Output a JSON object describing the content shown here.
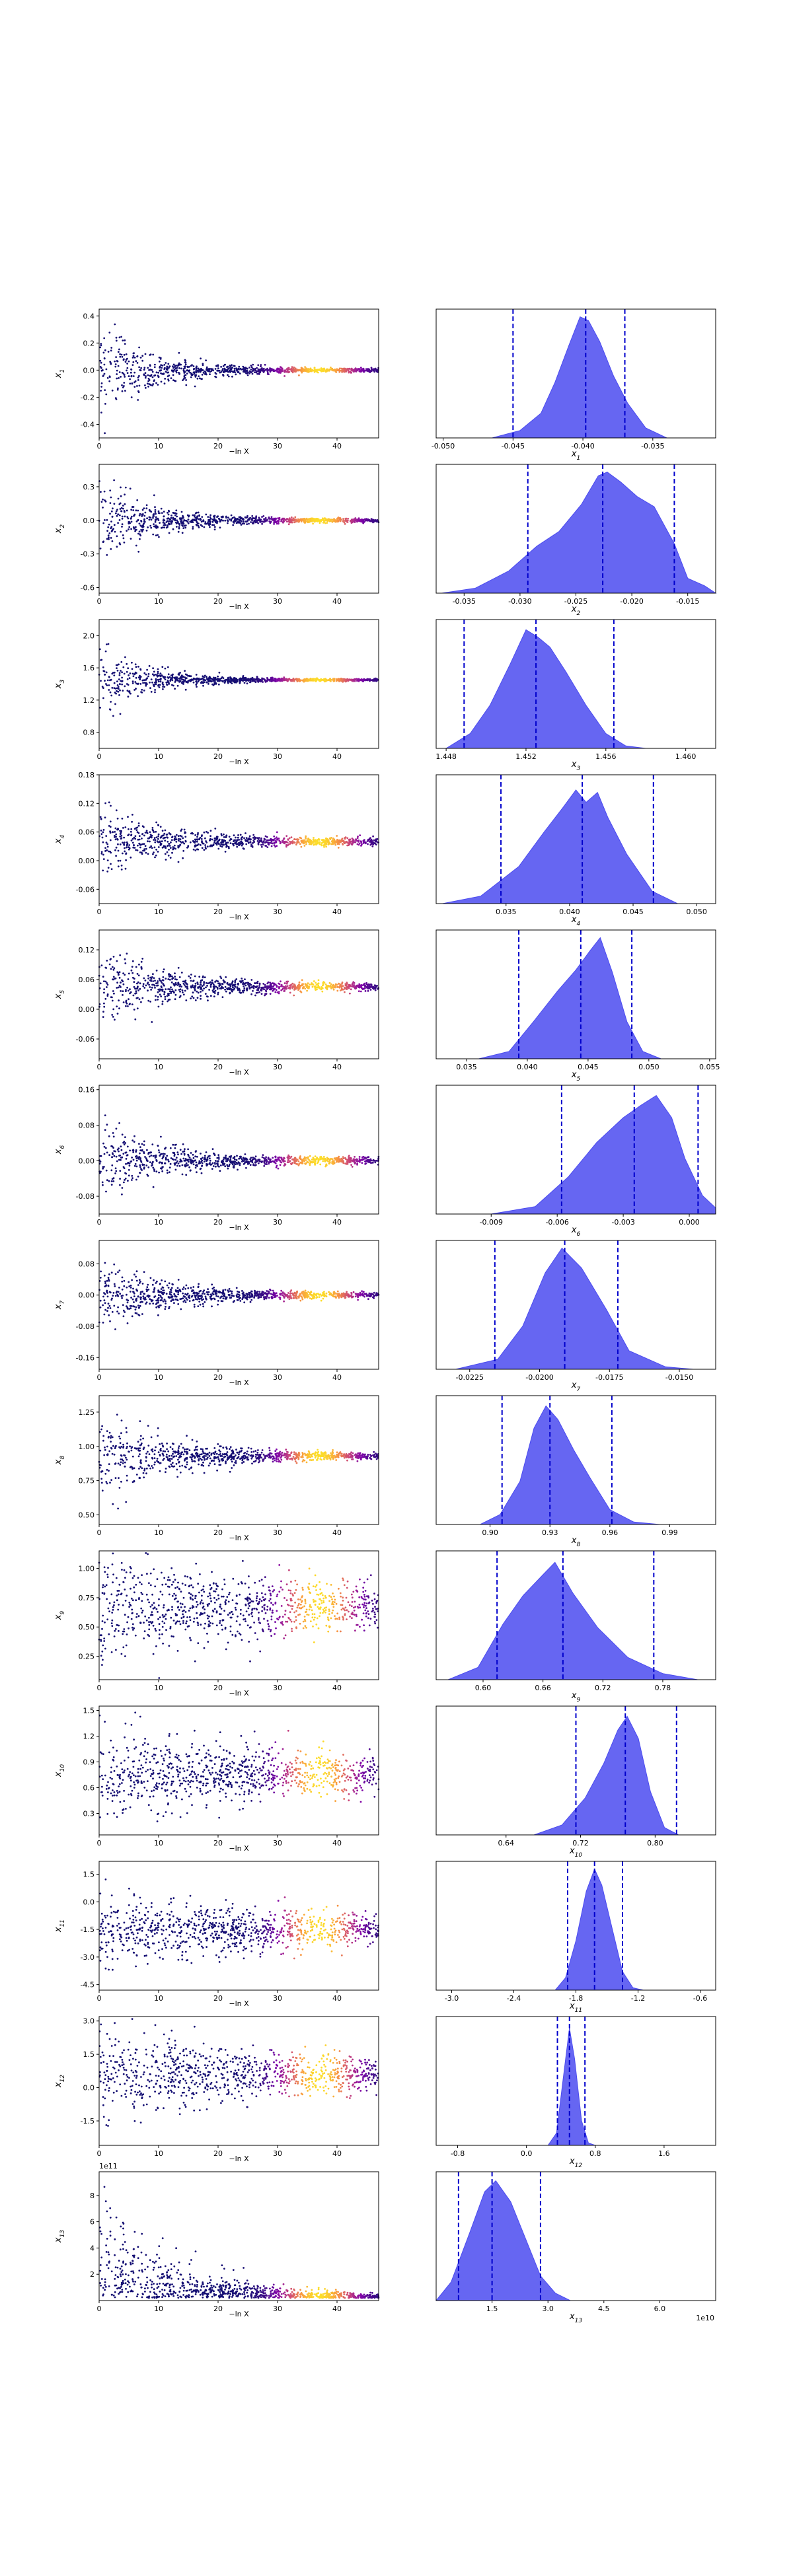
{
  "chart_data": [
    {
      "type": "scatter",
      "param": "x1",
      "ylabel": "x_1",
      "yticks": [
        "-0.4",
        "-0.2",
        "0.0",
        "0.2",
        "0.4"
      ],
      "yrange": [
        -0.5,
        0.45
      ],
      "trace": {
        "center": 0,
        "early_spread": 0.42,
        "late_spread": 0.015,
        "burn_in": 8
      }
    },
    {
      "type": "area",
      "param": "x1",
      "xlabel": "x_1",
      "xticks": [
        "-0.050",
        "-0.045",
        "-0.040",
        "-0.035"
      ],
      "xrange": [
        -0.0505,
        -0.0305
      ],
      "density": [
        [
          -0.0465,
          0
        ],
        [
          -0.0445,
          0.06
        ],
        [
          -0.043,
          0.2
        ],
        [
          -0.042,
          0.45
        ],
        [
          -0.041,
          0.75
        ],
        [
          -0.0402,
          0.98
        ],
        [
          -0.0396,
          0.95
        ],
        [
          -0.0388,
          0.78
        ],
        [
          -0.0378,
          0.5
        ],
        [
          -0.0368,
          0.28
        ],
        [
          -0.0355,
          0.08
        ],
        [
          -0.034,
          0
        ]
      ],
      "quantiles": [
        -0.045,
        -0.0398,
        -0.037
      ]
    },
    {
      "type": "scatter",
      "param": "x2",
      "ylabel": "x_2",
      "yticks": [
        "-0.6",
        "-0.3",
        "0.0",
        "0.3"
      ],
      "yrange": [
        -0.65,
        0.5
      ],
      "trace": {
        "center": 0,
        "early_spread": 0.45,
        "late_spread": 0.02,
        "burn_in": 8
      }
    },
    {
      "type": "area",
      "param": "x2",
      "xlabel": "x_2",
      "xticks": [
        "-0.035",
        "-0.030",
        "-0.025",
        "-0.020",
        "-0.015"
      ],
      "xrange": [
        -0.0375,
        -0.0125
      ],
      "density": [
        [
          -0.037,
          0
        ],
        [
          -0.034,
          0.04
        ],
        [
          -0.031,
          0.18
        ],
        [
          -0.0285,
          0.38
        ],
        [
          -0.0265,
          0.5
        ],
        [
          -0.0245,
          0.72
        ],
        [
          -0.023,
          0.95
        ],
        [
          -0.0222,
          0.98
        ],
        [
          -0.021,
          0.9
        ],
        [
          -0.0195,
          0.78
        ],
        [
          -0.018,
          0.7
        ],
        [
          -0.0162,
          0.4
        ],
        [
          -0.015,
          0.12
        ],
        [
          -0.0135,
          0.06
        ],
        [
          -0.0125,
          0
        ]
      ],
      "quantiles": [
        -0.0293,
        -0.0226,
        -0.0162
      ]
    },
    {
      "type": "scatter",
      "param": "x3",
      "ylabel": "x_3",
      "yticks": [
        "0.8",
        "1.2",
        "1.6",
        "2.0"
      ],
      "yrange": [
        0.6,
        2.2
      ],
      "trace": {
        "center": 1.45,
        "early_spread": 0.5,
        "late_spread": 0.015,
        "burn_in": 8
      }
    },
    {
      "type": "area",
      "param": "x3",
      "xlabel": "x_3",
      "xticks": [
        "1.448",
        "1.452",
        "1.456",
        "1.460"
      ],
      "xrange": [
        1.4475,
        1.4615
      ],
      "density": [
        [
          1.448,
          0
        ],
        [
          1.4492,
          0.12
        ],
        [
          1.4502,
          0.35
        ],
        [
          1.4512,
          0.68
        ],
        [
          1.452,
          0.96
        ],
        [
          1.4526,
          0.9
        ],
        [
          1.4532,
          0.82
        ],
        [
          1.454,
          0.62
        ],
        [
          1.455,
          0.35
        ],
        [
          1.456,
          0.12
        ],
        [
          1.457,
          0.02
        ],
        [
          1.458,
          0
        ]
      ],
      "quantiles": [
        1.4489,
        1.4525,
        1.4564
      ]
    },
    {
      "type": "scatter",
      "param": "x4",
      "ylabel": "x_4",
      "yticks": [
        "-0.06",
        "0.00",
        "0.06",
        "0.12",
        "0.18"
      ],
      "yrange": [
        -0.09,
        0.18
      ],
      "trace": {
        "center": 0.04,
        "early_spread": 0.09,
        "late_spread": 0.008,
        "burn_in": 10
      }
    },
    {
      "type": "area",
      "param": "x4",
      "xlabel": "x_4",
      "xticks": [
        "0.035",
        "0.040",
        "0.045",
        "0.050"
      ],
      "xrange": [
        0.0295,
        0.0515
      ],
      "density": [
        [
          0.03,
          0
        ],
        [
          0.033,
          0.06
        ],
        [
          0.036,
          0.3
        ],
        [
          0.038,
          0.58
        ],
        [
          0.0395,
          0.78
        ],
        [
          0.0405,
          0.92
        ],
        [
          0.0413,
          0.82
        ],
        [
          0.0422,
          0.9
        ],
        [
          0.043,
          0.7
        ],
        [
          0.0445,
          0.4
        ],
        [
          0.0465,
          0.1
        ],
        [
          0.0485,
          0
        ]
      ],
      "quantiles": [
        0.0346,
        0.041,
        0.0466
      ]
    },
    {
      "type": "scatter",
      "param": "x5",
      "ylabel": "x_5",
      "yticks": [
        "-0.06",
        "0.00",
        "0.06",
        "0.12"
      ],
      "yrange": [
        -0.1,
        0.16
      ],
      "trace": {
        "center": 0.045,
        "early_spread": 0.1,
        "late_spread": 0.008,
        "burn_in": 10
      }
    },
    {
      "type": "area",
      "param": "x5",
      "xlabel": "x_5",
      "xticks": [
        "0.035",
        "0.040",
        "0.045",
        "0.050",
        "0.055"
      ],
      "xrange": [
        0.0325,
        0.0555
      ],
      "density": [
        [
          0.036,
          0
        ],
        [
          0.0385,
          0.06
        ],
        [
          0.0405,
          0.3
        ],
        [
          0.0425,
          0.55
        ],
        [
          0.044,
          0.72
        ],
        [
          0.0452,
          0.88
        ],
        [
          0.046,
          0.98
        ],
        [
          0.047,
          0.7
        ],
        [
          0.0482,
          0.3
        ],
        [
          0.0495,
          0.06
        ],
        [
          0.051,
          0
        ]
      ],
      "quantiles": [
        0.0393,
        0.0444,
        0.0486
      ]
    },
    {
      "type": "scatter",
      "param": "x6",
      "ylabel": "x_6",
      "yticks": [
        "-0.08",
        "0.00",
        "0.08",
        "0.16"
      ],
      "yrange": [
        -0.12,
        0.17
      ],
      "trace": {
        "center": 0,
        "early_spread": 0.1,
        "late_spread": 0.008,
        "burn_in": 10
      }
    },
    {
      "type": "area",
      "param": "x6",
      "xlabel": "x_6",
      "xticks": [
        "-0.009",
        "-0.006",
        "-0.003",
        "0.000"
      ],
      "xrange": [
        -0.0115,
        0.0012
      ],
      "density": [
        [
          -0.009,
          0
        ],
        [
          -0.007,
          0.06
        ],
        [
          -0.0055,
          0.3
        ],
        [
          -0.0042,
          0.58
        ],
        [
          -0.003,
          0.78
        ],
        [
          -0.0022,
          0.88
        ],
        [
          -0.0015,
          0.96
        ],
        [
          -0.0008,
          0.78
        ],
        [
          -0.0002,
          0.45
        ],
        [
          0.0006,
          0.15
        ],
        [
          0.0012,
          0.05
        ]
      ],
      "quantiles": [
        -0.0058,
        -0.0025,
        0.0004
      ]
    },
    {
      "type": "scatter",
      "param": "x7",
      "ylabel": "x_7",
      "yticks": [
        "-0.16",
        "-0.08",
        "0.00",
        "0.08"
      ],
      "yrange": [
        -0.19,
        0.14
      ],
      "trace": {
        "center": 0,
        "early_spread": 0.1,
        "late_spread": 0.008,
        "burn_in": 10
      }
    },
    {
      "type": "area",
      "param": "x7",
      "xlabel": "x_7",
      "xticks": [
        "-0.0225",
        "-0.0200",
        "-0.0175",
        "-0.0150"
      ],
      "xrange": [
        -0.0237,
        -0.0137
      ],
      "density": [
        [
          -0.023,
          0
        ],
        [
          -0.0215,
          0.08
        ],
        [
          -0.0206,
          0.35
        ],
        [
          -0.0198,
          0.78
        ],
        [
          -0.0192,
          0.98
        ],
        [
          -0.0185,
          0.82
        ],
        [
          -0.0176,
          0.48
        ],
        [
          -0.0168,
          0.15
        ],
        [
          -0.0155,
          0.02
        ],
        [
          -0.0145,
          0
        ]
      ],
      "quantiles": [
        -0.0216,
        -0.0191,
        -0.0172
      ]
    },
    {
      "type": "scatter",
      "param": "x8",
      "ylabel": "x_8",
      "yticks": [
        "0.50",
        "0.75",
        "1.00",
        "1.25"
      ],
      "yrange": [
        0.43,
        1.37
      ],
      "trace": {
        "center": 0.93,
        "early_spread": 0.35,
        "late_spread": 0.02,
        "burn_in": 12
      }
    },
    {
      "type": "area",
      "param": "x8",
      "xlabel": "x_8",
      "xticks": [
        "0.90",
        "0.93",
        "0.96",
        "0.99"
      ],
      "xrange": [
        0.873,
        1.013
      ],
      "density": [
        [
          0.895,
          0
        ],
        [
          0.905,
          0.08
        ],
        [
          0.915,
          0.35
        ],
        [
          0.922,
          0.78
        ],
        [
          0.928,
          0.96
        ],
        [
          0.934,
          0.85
        ],
        [
          0.942,
          0.6
        ],
        [
          0.95,
          0.38
        ],
        [
          0.96,
          0.12
        ],
        [
          0.972,
          0.02
        ],
        [
          0.985,
          0
        ]
      ],
      "quantiles": [
        0.906,
        0.93,
        0.961
      ]
    },
    {
      "type": "scatter",
      "param": "x9",
      "ylabel": "x_9",
      "yticks": [
        "0.25",
        "0.50",
        "0.75",
        "1.00"
      ],
      "yrange": [
        0.05,
        1.15
      ],
      "trace": {
        "center": 0.67,
        "early_spread": 0.5,
        "late_spread": 0.06,
        "burn_in": 45
      }
    },
    {
      "type": "area",
      "param": "x9",
      "xlabel": "x_9",
      "xticks": [
        "0.60",
        "0.66",
        "0.72",
        "0.78"
      ],
      "xrange": [
        0.553,
        0.833
      ],
      "density": [
        [
          0.565,
          0
        ],
        [
          0.595,
          0.1
        ],
        [
          0.62,
          0.45
        ],
        [
          0.64,
          0.68
        ],
        [
          0.66,
          0.85
        ],
        [
          0.672,
          0.95
        ],
        [
          0.69,
          0.7
        ],
        [
          0.715,
          0.42
        ],
        [
          0.745,
          0.18
        ],
        [
          0.78,
          0.05
        ],
        [
          0.815,
          0
        ]
      ],
      "quantiles": [
        0.614,
        0.68,
        0.771
      ]
    },
    {
      "type": "scatter",
      "param": "x10",
      "ylabel": "x_10",
      "yticks": [
        "0.3",
        "0.6",
        "0.9",
        "1.2",
        "1.5"
      ],
      "yrange": [
        0.05,
        1.55
      ],
      "trace": {
        "center": 0.75,
        "early_spread": 0.55,
        "late_spread": 0.06,
        "burn_in": 45
      }
    },
    {
      "type": "area",
      "param": "x10",
      "xlabel": "x_10",
      "xticks": [
        "0.64",
        "0.72",
        "0.80"
      ],
      "xrange": [
        0.565,
        0.865
      ],
      "density": [
        [
          0.67,
          0
        ],
        [
          0.7,
          0.08
        ],
        [
          0.725,
          0.3
        ],
        [
          0.745,
          0.58
        ],
        [
          0.76,
          0.85
        ],
        [
          0.77,
          0.96
        ],
        [
          0.782,
          0.78
        ],
        [
          0.795,
          0.35
        ],
        [
          0.81,
          0.06
        ],
        [
          0.825,
          0
        ]
      ],
      "quantiles": [
        0.715,
        0.768,
        0.823
      ]
    },
    {
      "type": "scatter",
      "param": "x11",
      "ylabel": "x_11",
      "yticks": [
        "-4.5",
        "-3.0",
        "-1.5",
        "0.0",
        "1.5"
      ],
      "yrange": [
        -4.8,
        2.2
      ],
      "trace": {
        "center": -1.5,
        "early_spread": 2.2,
        "late_spread": 0.2,
        "burn_in": 45
      }
    },
    {
      "type": "area",
      "param": "x11",
      "xlabel": "x_11",
      "xticks": [
        "-3.0",
        "-2.4",
        "-1.8",
        "-1.2",
        "-0.6"
      ],
      "xrange": [
        -3.15,
        -0.45
      ],
      "density": [
        [
          -2.0,
          0
        ],
        [
          -1.9,
          0.1
        ],
        [
          -1.8,
          0.4
        ],
        [
          -1.7,
          0.8
        ],
        [
          -1.62,
          0.98
        ],
        [
          -1.55,
          0.85
        ],
        [
          -1.45,
          0.5
        ],
        [
          -1.35,
          0.15
        ],
        [
          -1.25,
          0.02
        ],
        [
          -1.15,
          0
        ]
      ],
      "quantiles": [
        -1.88,
        -1.62,
        -1.35
      ]
    },
    {
      "type": "scatter",
      "param": "x12",
      "ylabel": "x_12",
      "yticks": [
        "-1.5",
        "0.0",
        "1.5",
        "3.0"
      ],
      "yrange": [
        -2.6,
        3.2
      ],
      "trace": {
        "center": 0.6,
        "early_spread": 2.2,
        "late_spread": 0.15,
        "burn_in": 45
      }
    },
    {
      "type": "area",
      "param": "x12",
      "xlabel": "x_12",
      "xticks": [
        "-0.8",
        "0.0",
        "0.8",
        "1.6"
      ],
      "xrange": [
        -1.05,
        2.2
      ],
      "density": [
        [
          0.25,
          0
        ],
        [
          0.35,
          0.1
        ],
        [
          0.42,
          0.5
        ],
        [
          0.5,
          0.95
        ],
        [
          0.56,
          0.7
        ],
        [
          0.64,
          0.2
        ],
        [
          0.72,
          0.02
        ],
        [
          0.8,
          0
        ]
      ],
      "quantiles": [
        0.36,
        0.5,
        0.68
      ]
    },
    {
      "type": "scatter",
      "param": "x13",
      "ylabel": "x_13",
      "offset_label": "1e11",
      "yticks": [
        "2",
        "4",
        "6",
        "8"
      ],
      "yrange": [
        0,
        9.8
      ],
      "trace": {
        "center": 0.2,
        "early_spread": 9,
        "late_spread": 0.15,
        "burn_in": 12,
        "one_sided": true
      }
    },
    {
      "type": "area",
      "param": "x13",
      "xlabel": "x_13",
      "offset_label": "1e10",
      "xticks": [
        "1.5",
        "3.0",
        "4.5",
        "6.0"
      ],
      "xrange": [
        0,
        7.5
      ],
      "density": [
        [
          0.0,
          0
        ],
        [
          0.4,
          0.15
        ],
        [
          0.9,
          0.55
        ],
        [
          1.3,
          0.88
        ],
        [
          1.6,
          0.97
        ],
        [
          2.0,
          0.8
        ],
        [
          2.4,
          0.5
        ],
        [
          2.8,
          0.2
        ],
        [
          3.2,
          0.06
        ],
        [
          3.6,
          0
        ]
      ],
      "quantiles": [
        0.6,
        1.5,
        2.8
      ]
    }
  ],
  "shared": {
    "scatter_xlabel": "−ln X",
    "scatter_xticks": [
      "0",
      "10",
      "20",
      "30",
      "40"
    ],
    "scatter_xrange": [
      0,
      47
    ],
    "point_color_early": "#0b0f6e",
    "point_color_late": "#fde725",
    "fill_color": "#4b4bf0",
    "quantile_color": "#0000cc"
  }
}
